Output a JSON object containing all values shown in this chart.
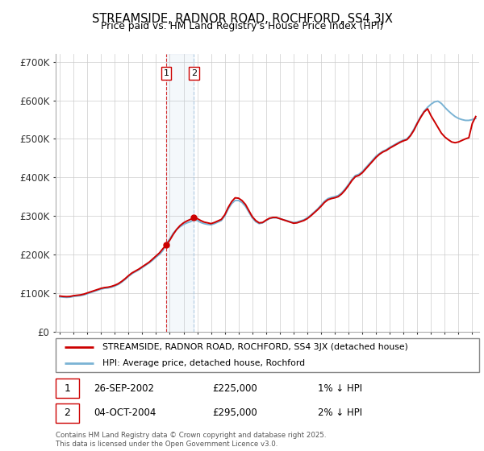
{
  "title": "STREAMSIDE, RADNOR ROAD, ROCHFORD, SS4 3JX",
  "subtitle": "Price paid vs. HM Land Registry's House Price Index (HPI)",
  "hpi_color": "#7ab3d4",
  "price_color": "#cc0000",
  "background_color": "#ffffff",
  "grid_color": "#cccccc",
  "sale1_date": "26-SEP-2002",
  "sale1_price": 225000,
  "sale1_x": 2002.75,
  "sale2_date": "04-OCT-2004",
  "sale2_price": 295000,
  "sale2_x": 2004.75,
  "legend1": "STREAMSIDE, RADNOR ROAD, ROCHFORD, SS4 3JX (detached house)",
  "legend2": "HPI: Average price, detached house, Rochford",
  "footer": "Contains HM Land Registry data © Crown copyright and database right 2025.\nThis data is licensed under the Open Government Licence v3.0.",
  "hpi_data": [
    [
      1995.0,
      90000
    ],
    [
      1995.25,
      89000
    ],
    [
      1995.5,
      88500
    ],
    [
      1995.75,
      89000
    ],
    [
      1996.0,
      91000
    ],
    [
      1996.25,
      92000
    ],
    [
      1996.5,
      93000
    ],
    [
      1996.75,
      95000
    ],
    [
      1997.0,
      98000
    ],
    [
      1997.25,
      101000
    ],
    [
      1997.5,
      104000
    ],
    [
      1997.75,
      107000
    ],
    [
      1998.0,
      110000
    ],
    [
      1998.25,
      112000
    ],
    [
      1998.5,
      113000
    ],
    [
      1998.75,
      115000
    ],
    [
      1999.0,
      118000
    ],
    [
      1999.25,
      122000
    ],
    [
      1999.5,
      128000
    ],
    [
      1999.75,
      135000
    ],
    [
      2000.0,
      143000
    ],
    [
      2000.25,
      150000
    ],
    [
      2000.5,
      155000
    ],
    [
      2000.75,
      160000
    ],
    [
      2001.0,
      166000
    ],
    [
      2001.25,
      172000
    ],
    [
      2001.5,
      178000
    ],
    [
      2001.75,
      185000
    ],
    [
      2002.0,
      193000
    ],
    [
      2002.25,
      200000
    ],
    [
      2002.5,
      210000
    ],
    [
      2002.75,
      228000
    ],
    [
      2003.0,
      240000
    ],
    [
      2003.25,
      255000
    ],
    [
      2003.5,
      265000
    ],
    [
      2003.75,
      272000
    ],
    [
      2004.0,
      278000
    ],
    [
      2004.25,
      282000
    ],
    [
      2004.5,
      285000
    ],
    [
      2004.75,
      290000
    ],
    [
      2005.0,
      288000
    ],
    [
      2005.25,
      283000
    ],
    [
      2005.5,
      280000
    ],
    [
      2005.75,
      278000
    ],
    [
      2006.0,
      277000
    ],
    [
      2006.25,
      280000
    ],
    [
      2006.5,
      284000
    ],
    [
      2006.75,
      288000
    ],
    [
      2007.0,
      300000
    ],
    [
      2007.25,
      318000
    ],
    [
      2007.5,
      332000
    ],
    [
      2007.75,
      340000
    ],
    [
      2008.0,
      340000
    ],
    [
      2008.25,
      335000
    ],
    [
      2008.5,
      325000
    ],
    [
      2008.75,
      310000
    ],
    [
      2009.0,
      295000
    ],
    [
      2009.25,
      285000
    ],
    [
      2009.5,
      280000
    ],
    [
      2009.75,
      282000
    ],
    [
      2010.0,
      288000
    ],
    [
      2010.25,
      293000
    ],
    [
      2010.5,
      295000
    ],
    [
      2010.75,
      295000
    ],
    [
      2011.0,
      293000
    ],
    [
      2011.25,
      290000
    ],
    [
      2011.5,
      288000
    ],
    [
      2011.75,
      285000
    ],
    [
      2012.0,
      283000
    ],
    [
      2012.25,
      284000
    ],
    [
      2012.5,
      287000
    ],
    [
      2012.75,
      290000
    ],
    [
      2013.0,
      295000
    ],
    [
      2013.25,
      302000
    ],
    [
      2013.5,
      310000
    ],
    [
      2013.75,
      318000
    ],
    [
      2014.0,
      328000
    ],
    [
      2014.25,
      338000
    ],
    [
      2014.5,
      345000
    ],
    [
      2014.75,
      348000
    ],
    [
      2015.0,
      350000
    ],
    [
      2015.25,
      353000
    ],
    [
      2015.5,
      360000
    ],
    [
      2015.75,
      370000
    ],
    [
      2016.0,
      382000
    ],
    [
      2016.25,
      395000
    ],
    [
      2016.5,
      405000
    ],
    [
      2016.75,
      408000
    ],
    [
      2017.0,
      415000
    ],
    [
      2017.25,
      425000
    ],
    [
      2017.5,
      435000
    ],
    [
      2017.75,
      445000
    ],
    [
      2018.0,
      455000
    ],
    [
      2018.25,
      462000
    ],
    [
      2018.5,
      468000
    ],
    [
      2018.75,
      472000
    ],
    [
      2019.0,
      478000
    ],
    [
      2019.25,
      483000
    ],
    [
      2019.5,
      488000
    ],
    [
      2019.75,
      493000
    ],
    [
      2020.0,
      497000
    ],
    [
      2020.25,
      500000
    ],
    [
      2020.5,
      510000
    ],
    [
      2020.75,
      525000
    ],
    [
      2021.0,
      542000
    ],
    [
      2021.25,
      558000
    ],
    [
      2021.5,
      572000
    ],
    [
      2021.75,
      582000
    ],
    [
      2022.0,
      590000
    ],
    [
      2022.25,
      596000
    ],
    [
      2022.5,
      598000
    ],
    [
      2022.75,
      592000
    ],
    [
      2023.0,
      582000
    ],
    [
      2023.25,
      573000
    ],
    [
      2023.5,
      565000
    ],
    [
      2023.75,
      558000
    ],
    [
      2024.0,
      553000
    ],
    [
      2024.25,
      550000
    ],
    [
      2024.5,
      548000
    ],
    [
      2024.75,
      548000
    ],
    [
      2025.0,
      550000
    ],
    [
      2025.25,
      553000
    ]
  ],
  "price_data": [
    [
      1995.0,
      92000
    ],
    [
      1995.25,
      91000
    ],
    [
      1995.5,
      90500
    ],
    [
      1995.75,
      91000
    ],
    [
      1996.0,
      93000
    ],
    [
      1996.25,
      94000
    ],
    [
      1996.5,
      95000
    ],
    [
      1996.75,
      97000
    ],
    [
      1997.0,
      100000
    ],
    [
      1997.25,
      103000
    ],
    [
      1997.5,
      106000
    ],
    [
      1997.75,
      109000
    ],
    [
      1998.0,
      112000
    ],
    [
      1998.25,
      114000
    ],
    [
      1998.5,
      115000
    ],
    [
      1998.75,
      117000
    ],
    [
      1999.0,
      120000
    ],
    [
      1999.25,
      124000
    ],
    [
      1999.5,
      130000
    ],
    [
      1999.75,
      137000
    ],
    [
      2000.0,
      145000
    ],
    [
      2000.25,
      152000
    ],
    [
      2000.5,
      157000
    ],
    [
      2000.75,
      162000
    ],
    [
      2001.0,
      168000
    ],
    [
      2001.25,
      174000
    ],
    [
      2001.5,
      180000
    ],
    [
      2001.75,
      188000
    ],
    [
      2002.0,
      196000
    ],
    [
      2002.25,
      204000
    ],
    [
      2002.5,
      215000
    ],
    [
      2002.75,
      225000
    ],
    [
      2003.0,
      237000
    ],
    [
      2003.25,
      252000
    ],
    [
      2003.5,
      265000
    ],
    [
      2003.75,
      275000
    ],
    [
      2004.0,
      282000
    ],
    [
      2004.25,
      287000
    ],
    [
      2004.5,
      291000
    ],
    [
      2004.75,
      295000
    ],
    [
      2005.0,
      293000
    ],
    [
      2005.25,
      288000
    ],
    [
      2005.5,
      284000
    ],
    [
      2005.75,
      282000
    ],
    [
      2006.0,
      280000
    ],
    [
      2006.25,
      283000
    ],
    [
      2006.5,
      287000
    ],
    [
      2006.75,
      291000
    ],
    [
      2007.0,
      303000
    ],
    [
      2007.25,
      322000
    ],
    [
      2007.5,
      337000
    ],
    [
      2007.75,
      347000
    ],
    [
      2008.0,
      346000
    ],
    [
      2008.25,
      340000
    ],
    [
      2008.5,
      330000
    ],
    [
      2008.75,
      314000
    ],
    [
      2009.0,
      298000
    ],
    [
      2009.25,
      288000
    ],
    [
      2009.5,
      282000
    ],
    [
      2009.75,
      283000
    ],
    [
      2010.0,
      289000
    ],
    [
      2010.25,
      294000
    ],
    [
      2010.5,
      296000
    ],
    [
      2010.75,
      296000
    ],
    [
      2011.0,
      293000
    ],
    [
      2011.25,
      290000
    ],
    [
      2011.5,
      287000
    ],
    [
      2011.75,
      284000
    ],
    [
      2012.0,
      281000
    ],
    [
      2012.25,
      282000
    ],
    [
      2012.5,
      285000
    ],
    [
      2012.75,
      288000
    ],
    [
      2013.0,
      293000
    ],
    [
      2013.25,
      300000
    ],
    [
      2013.5,
      308000
    ],
    [
      2013.75,
      316000
    ],
    [
      2014.0,
      325000
    ],
    [
      2014.25,
      335000
    ],
    [
      2014.5,
      342000
    ],
    [
      2014.75,
      345000
    ],
    [
      2015.0,
      347000
    ],
    [
      2015.25,
      350000
    ],
    [
      2015.5,
      357000
    ],
    [
      2015.75,
      367000
    ],
    [
      2016.0,
      379000
    ],
    [
      2016.25,
      392000
    ],
    [
      2016.5,
      402000
    ],
    [
      2016.75,
      405000
    ],
    [
      2017.0,
      412000
    ],
    [
      2017.25,
      422000
    ],
    [
      2017.5,
      432000
    ],
    [
      2017.75,
      442000
    ],
    [
      2018.0,
      452000
    ],
    [
      2018.25,
      460000
    ],
    [
      2018.5,
      466000
    ],
    [
      2018.75,
      470000
    ],
    [
      2019.0,
      476000
    ],
    [
      2019.25,
      481000
    ],
    [
      2019.5,
      486000
    ],
    [
      2019.75,
      491000
    ],
    [
      2020.0,
      495000
    ],
    [
      2020.25,
      498000
    ],
    [
      2020.5,
      508000
    ],
    [
      2020.75,
      522000
    ],
    [
      2021.0,
      540000
    ],
    [
      2021.25,
      556000
    ],
    [
      2021.5,
      570000
    ],
    [
      2021.75,
      578000
    ],
    [
      2022.0,
      560000
    ],
    [
      2022.25,
      545000
    ],
    [
      2022.5,
      530000
    ],
    [
      2022.75,
      515000
    ],
    [
      2023.0,
      505000
    ],
    [
      2023.25,
      498000
    ],
    [
      2023.5,
      492000
    ],
    [
      2023.75,
      490000
    ],
    [
      2024.0,
      492000
    ],
    [
      2024.25,
      496000
    ],
    [
      2024.5,
      500000
    ],
    [
      2024.75,
      503000
    ],
    [
      2025.0,
      540000
    ],
    [
      2025.25,
      558000
    ]
  ]
}
